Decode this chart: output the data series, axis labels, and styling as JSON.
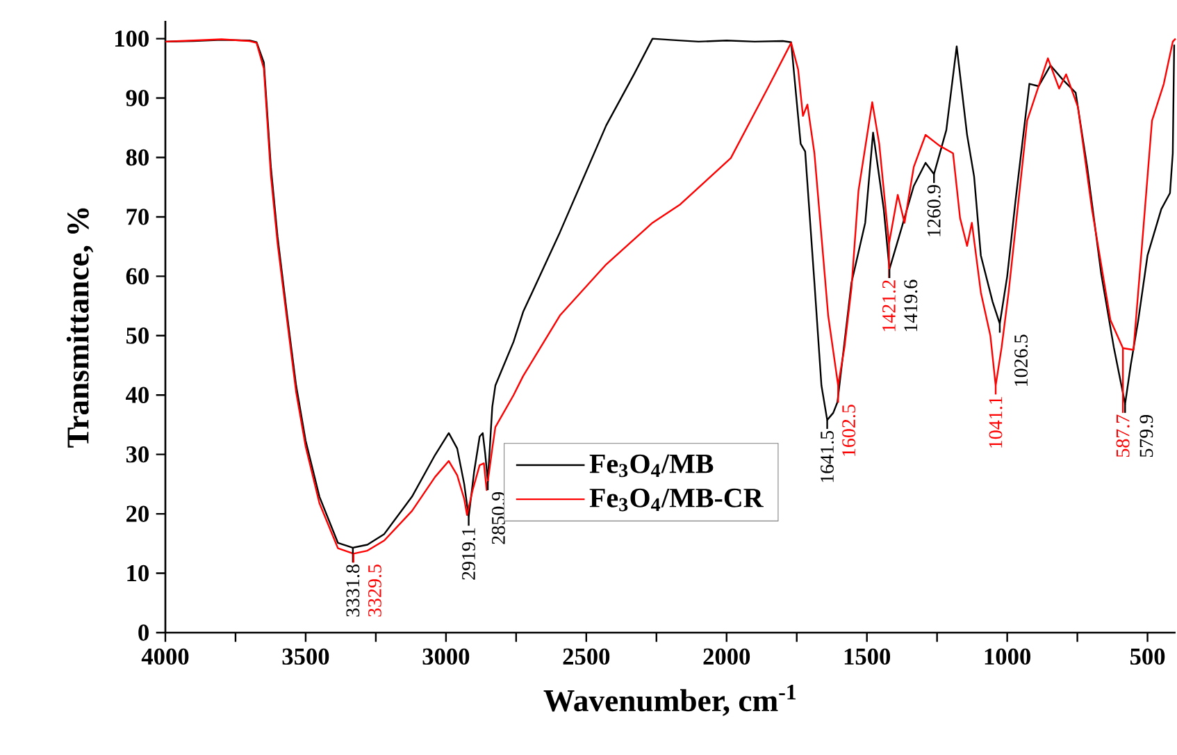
{
  "chart_data": {
    "type": "line",
    "xlabel": "Wavenumber, cm$^{-1}$",
    "ylabel": "Transmittance, %",
    "xlim": [
      4000,
      400
    ],
    "ylim": [
      0,
      103
    ],
    "xticks": [
      4000,
      {
        "value": 3750,
        "label": null
      },
      3500,
      {
        "value": 3250,
        "label": null
      },
      3000,
      {
        "value": 2750,
        "label": null
      },
      2500,
      {
        "value": 2250,
        "label": null
      },
      2000,
      {
        "value": 1750,
        "label": null
      },
      1500,
      {
        "value": 1250,
        "label": null
      },
      1000,
      {
        "value": 750,
        "label": null
      },
      500
    ],
    "yticks": [
      0,
      10,
      20,
      30,
      40,
      50,
      60,
      70,
      80,
      90,
      100
    ],
    "legend": "bottom",
    "line_style": "solid",
    "series": [
      {
        "name": "Fe$_{3}$O$_{4}$/MB",
        "color": "#000000",
        "x": [
          4000,
          3900,
          3800,
          3700,
          3675,
          3649,
          3624,
          3600,
          3566,
          3534,
          3500,
          3451,
          3385,
          3331.8,
          3280,
          3220,
          3121,
          3039,
          2990,
          2960,
          2935,
          2919.1,
          2900,
          2880,
          2869,
          2860,
          2850.9,
          2835,
          2824,
          2759,
          2725,
          2594,
          2429,
          2330,
          2264,
          2200,
          2100,
          2000,
          1900,
          1800,
          1770,
          1736,
          1720,
          1687,
          1662,
          1641.5,
          1620,
          1605,
          1555,
          1506,
          1478,
          1440,
          1419.6,
          1376,
          1333,
          1291,
          1260.9,
          1217,
          1180,
          1143,
          1118,
          1094,
          1052,
          1026.5,
          1000,
          970,
          921,
          888,
          846,
          800,
          756,
          715,
          665,
          620,
          579.9,
          560,
          533,
          500,
          451,
          420,
          410,
          405
        ],
        "values": [
          99.5,
          99.6,
          99.8,
          99.7,
          99.4,
          96,
          78.4,
          66.6,
          53.4,
          41.6,
          32.3,
          22.9,
          15.1,
          14.3,
          14.8,
          16.6,
          22.9,
          29.9,
          33.6,
          31,
          25,
          19.5,
          27,
          33,
          33.6,
          30,
          25.5,
          38,
          41.6,
          49,
          54,
          67.4,
          85.4,
          94,
          100,
          99.8,
          99.5,
          99.7,
          99.5,
          99.6,
          99.4,
          82.3,
          81,
          58.9,
          41.6,
          35.8,
          37,
          38.8,
          58.9,
          69,
          84.2,
          71.3,
          61.2,
          68.2,
          75.2,
          79.1,
          77.2,
          84.6,
          98.7,
          83.8,
          76.8,
          63.5,
          55.7,
          52,
          60,
          72.9,
          92.4,
          92,
          95.5,
          93,
          90.9,
          78.4,
          60.4,
          48,
          38.5,
          45,
          52.6,
          63.5,
          71.3,
          74,
          80.7,
          99
        ]
      },
      {
        "name": "Fe$_{3}$O$_{4}$/MB-CR",
        "color": "#ff0000",
        "x": [
          4000,
          3900,
          3800,
          3700,
          3675,
          3649,
          3624,
          3600,
          3566,
          3534,
          3500,
          3451,
          3385,
          3329.5,
          3280,
          3220,
          3121,
          3039,
          2990,
          2960,
          2935,
          2925,
          2905,
          2880,
          2865,
          2855,
          2835,
          2824,
          2759,
          2725,
          2594,
          2429,
          2264,
          2165,
          1985,
          1853,
          1770,
          1745,
          1728,
          1712,
          1687,
          1638,
          1602.5,
          1580,
          1555,
          1530,
          1481,
          1456,
          1421.2,
          1390,
          1366,
          1333,
          1291,
          1242,
          1193,
          1168,
          1143,
          1126,
          1094,
          1060,
          1041.1,
          1020,
          995,
          929,
          855,
          815,
          790,
          748,
          698,
          632,
          587.7,
          550,
          520,
          484,
          442,
          410,
          400
        ],
        "values": [
          99.5,
          99.7,
          99.9,
          99.6,
          99.3,
          95,
          77,
          65.5,
          52.5,
          40.5,
          31.3,
          21.8,
          14.2,
          13.3,
          13.8,
          15.5,
          20.5,
          26.2,
          28.9,
          26.5,
          22.5,
          19.8,
          24,
          28.2,
          28.5,
          24,
          31,
          34.6,
          40,
          43.2,
          53.4,
          62,
          69,
          72.1,
          79.9,
          91.7,
          99.3,
          94.8,
          87,
          88.9,
          80.7,
          53.4,
          41.6,
          48,
          58,
          74.4,
          89.3,
          82.3,
          65.5,
          73.7,
          69,
          78.4,
          83.8,
          82,
          80.7,
          69.8,
          65.1,
          69,
          57.3,
          50,
          41.6,
          48,
          57.3,
          86.2,
          96.7,
          91.6,
          94,
          88.5,
          71.3,
          52.6,
          47.9,
          47.6,
          65,
          86.2,
          92.4,
          99.5,
          100
        ]
      }
    ],
    "annotations": [
      {
        "text": "3331.8",
        "x": 3331.8,
        "y": 14.3
      },
      {
        "text": "3329.5",
        "x": 3329.5,
        "y": 13.3
      },
      {
        "text": "2919.1",
        "x": 2919.1,
        "y": 19.5
      },
      {
        "text": "2850.9",
        "x": 2850.9,
        "y": 25.5
      },
      {
        "text": "1641.5",
        "x": 1641.5,
        "y": 35.8
      },
      {
        "text": "1602.5",
        "x": 1602.5,
        "y": 41.6
      },
      {
        "text": "1421.2",
        "x": 1421.2,
        "y": 65.5
      },
      {
        "text": "1419.6",
        "x": 1419.6,
        "y": 61.2
      },
      {
        "text": "1260.9",
        "x": 1260.9,
        "y": 77.2
      },
      {
        "text": "1041.1",
        "x": 1041.1,
        "y": 41.6
      },
      {
        "text": "1026.5",
        "x": 1026.5,
        "y": 52
      },
      {
        "text": "587.7",
        "x": 587.7,
        "y": 47.9
      },
      {
        "text": "579.9",
        "x": 579.9,
        "y": 38.5
      }
    ]
  }
}
